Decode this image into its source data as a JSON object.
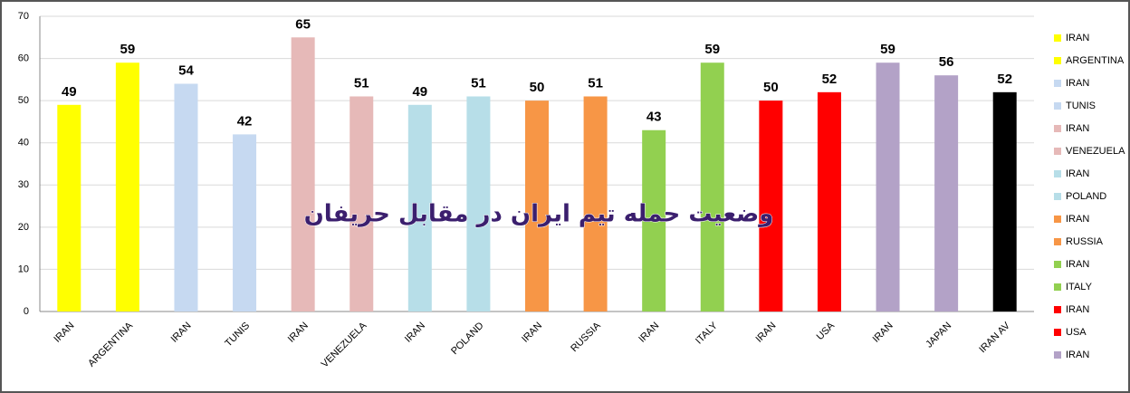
{
  "chart_data": {
    "type": "bar",
    "title": "وضعیت حمله تیم ایران در مقابل حریفان",
    "categories": [
      "IRAN",
      "ARGENTINA",
      "IRAN",
      "TUNIS",
      "IRAN",
      "VENEZUELA",
      "IRAN",
      "POLAND",
      "IRAN",
      "RUSSIA",
      "IRAN",
      "ITALY",
      "IRAN",
      "USA",
      "IRAN",
      "JAPAN",
      "IRAN AV"
    ],
    "values": [
      49,
      59,
      54,
      42,
      65,
      51,
      49,
      51,
      50,
      51,
      43,
      59,
      50,
      52,
      59,
      56,
      52
    ],
    "colors": [
      "#ffff00",
      "#ffff00",
      "#c6d9f1",
      "#c6d9f1",
      "#e6b9b8",
      "#e6b9b8",
      "#b7dee8",
      "#b7dee8",
      "#f79646",
      "#f79646",
      "#92d050",
      "#92d050",
      "#ff0000",
      "#ff0000",
      "#b3a2c7",
      "#b3a2c7",
      "#000000"
    ],
    "ylim": [
      0,
      70
    ],
    "yticks": [
      0,
      10,
      20,
      30,
      40,
      50,
      60,
      70
    ],
    "grid": true,
    "legend": "right"
  }
}
